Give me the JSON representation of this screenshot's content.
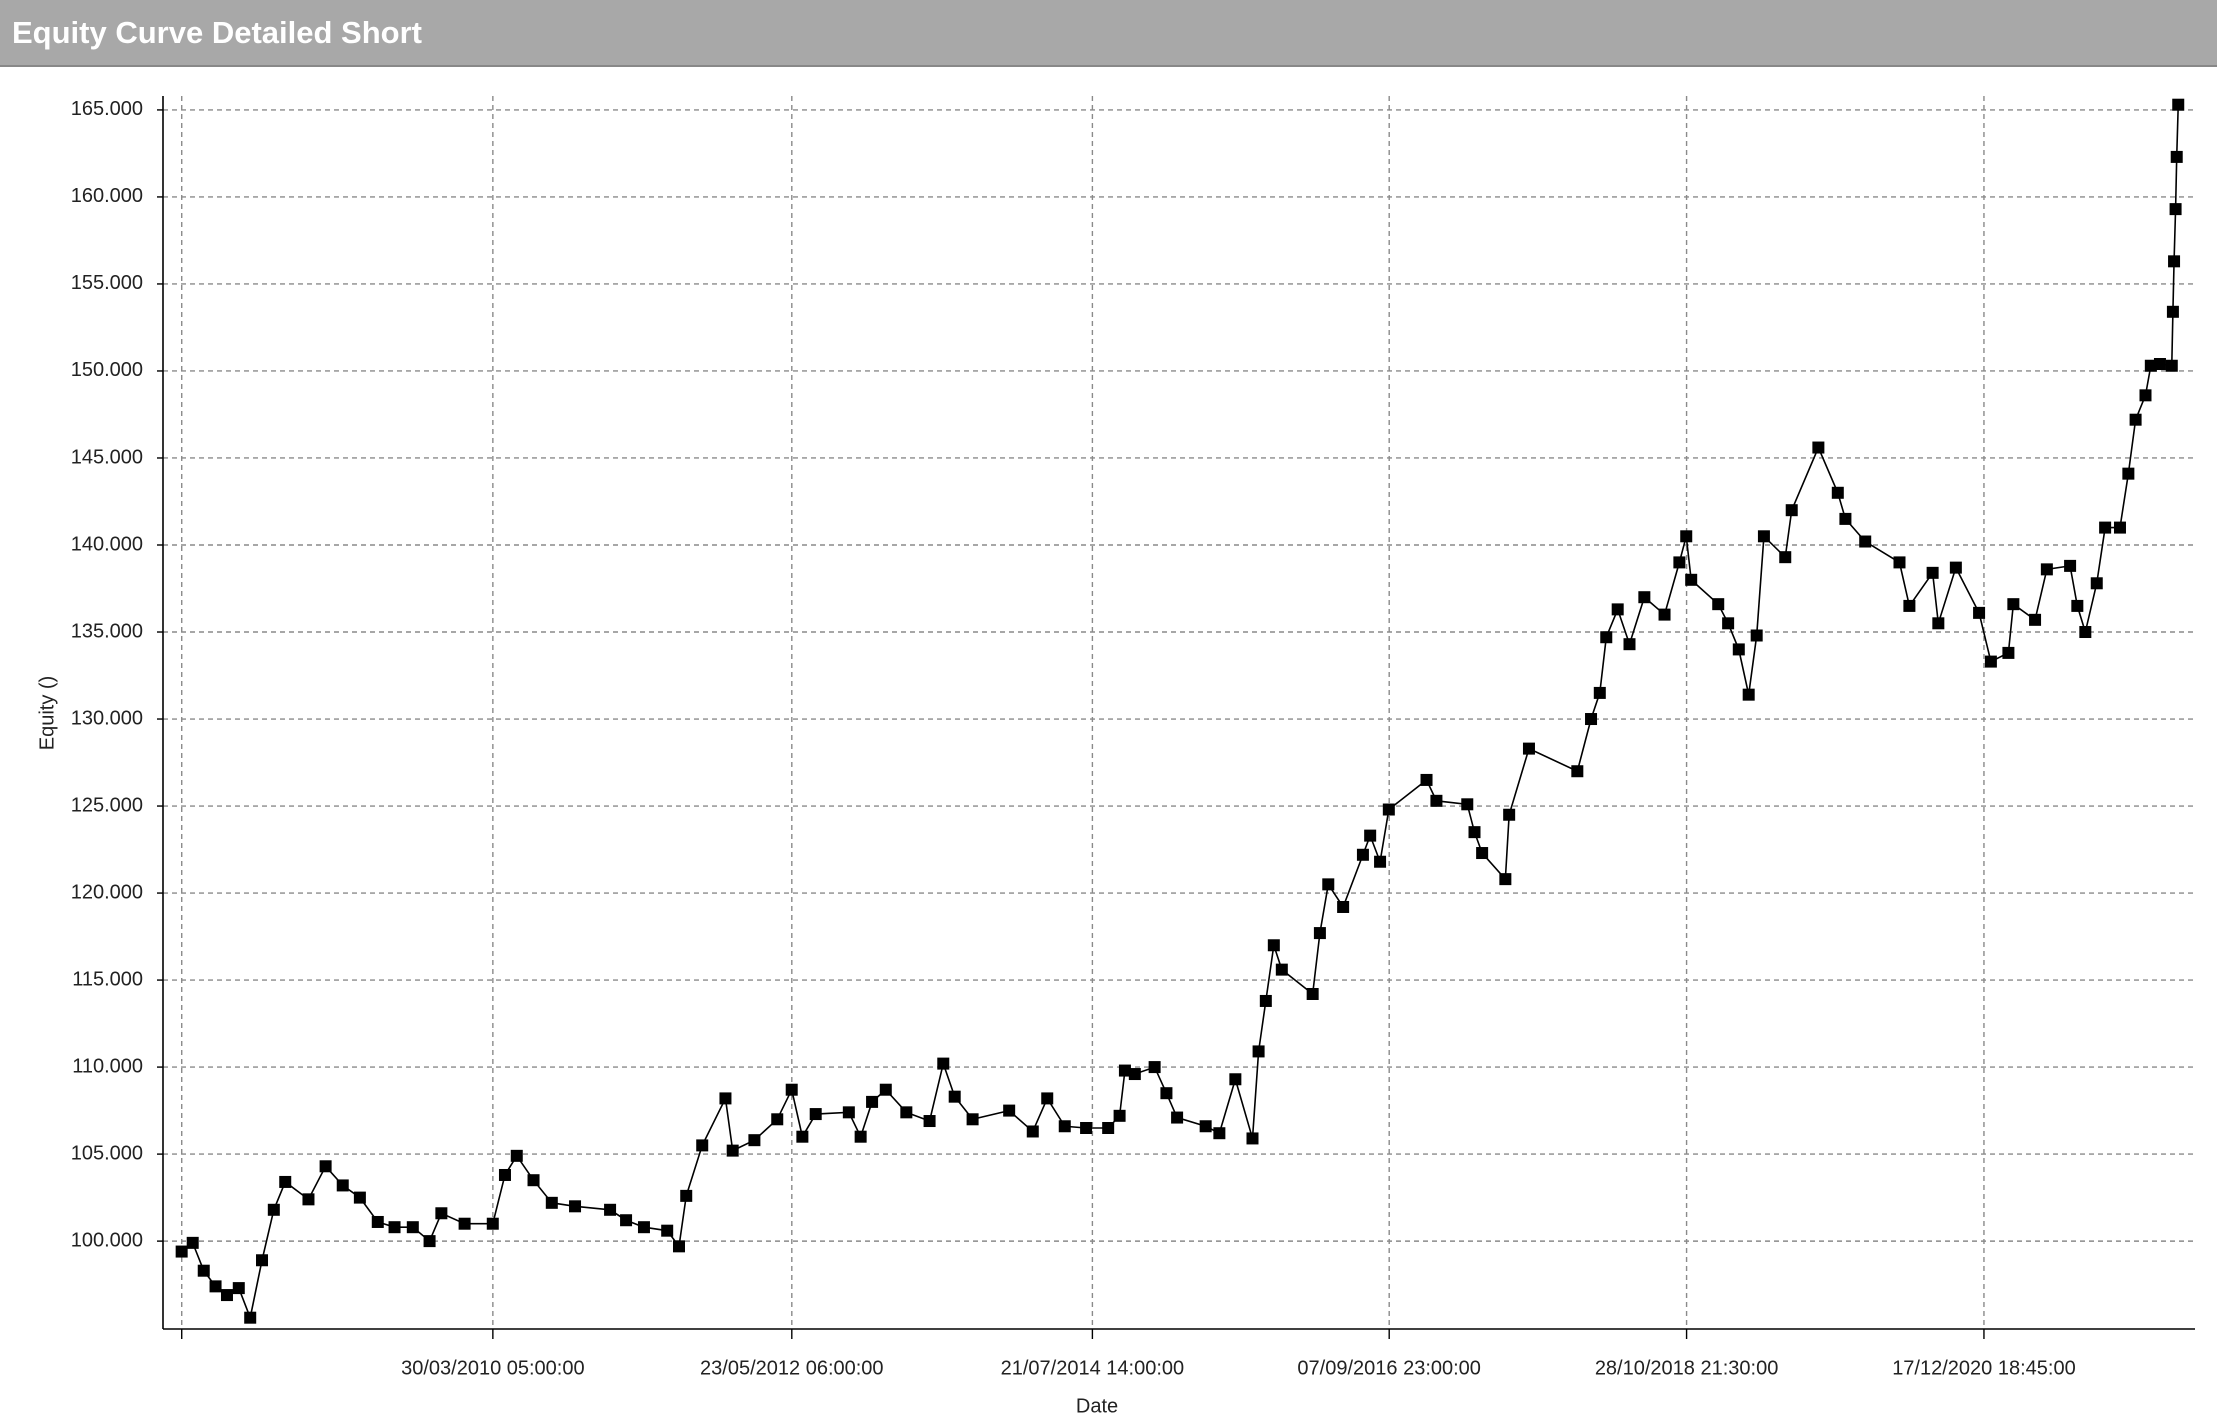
{
  "chart_data": {
    "type": "line",
    "window_title": "Equity Curve Detailed Short",
    "x_label": "Date",
    "y_label": "Equity ()",
    "grid": true,
    "xlim": [
      "2007-11-15",
      "2022-06-25"
    ],
    "xticks": [
      {
        "value": "2008-01-03T04:00:00",
        "label": null
      },
      {
        "value": "2010-03-30T05:00:00",
        "label": "30/03/2010 05:00:00"
      },
      {
        "value": "2012-05-23T06:00:00",
        "label": "23/05/2012 06:00:00"
      },
      {
        "value": "2014-07-21T14:00:00",
        "label": "21/07/2014 14:00:00"
      },
      {
        "value": "2016-09-07T23:00:00",
        "label": "07/09/2016 23:00:00"
      },
      {
        "value": "2018-10-28T21:30:00",
        "label": "28/10/2018 21:30:00"
      },
      {
        "value": "2020-12-17T18:45:00",
        "label": "17/12/2020 18:45:00"
      }
    ],
    "ylim": [
      94950,
      165800
    ],
    "yticks": [
      {
        "value": 100000,
        "label": "100.000"
      },
      {
        "value": 105000,
        "label": "105.000"
      },
      {
        "value": 110000,
        "label": "110.000"
      },
      {
        "value": 115000,
        "label": "115.000"
      },
      {
        "value": 120000,
        "label": "120.000"
      },
      {
        "value": 125000,
        "label": "125.000"
      },
      {
        "value": 130000,
        "label": "130.000"
      },
      {
        "value": 135000,
        "label": "135.000"
      },
      {
        "value": 140000,
        "label": "140.000"
      },
      {
        "value": 145000,
        "label": "145.000"
      },
      {
        "value": 150000,
        "label": "150.000"
      },
      {
        "value": 155000,
        "label": "155.000"
      },
      {
        "value": 160000,
        "label": "160.000"
      },
      {
        "value": 165000,
        "label": "165.000"
      }
    ],
    "x": [
      "2008-01-03",
      "2008-02-01",
      "2008-03-01",
      "2008-04-01",
      "2008-05-01",
      "2008-06-01",
      "2008-07-01",
      "2008-08-01",
      "2008-09-01",
      "2008-10-01",
      "2008-12-01",
      "2009-01-15",
      "2009-03-01",
      "2009-04-15",
      "2009-06-01",
      "2009-07-15",
      "2009-09-01",
      "2009-10-15",
      "2009-11-15",
      "2010-01-15",
      "2010-03-30",
      "2010-05-01",
      "2010-06-01",
      "2010-07-15",
      "2010-09-01",
      "2010-11-01",
      "2011-02-01",
      "2011-03-15",
      "2011-05-01",
      "2011-07-01",
      "2011-08-01",
      "2011-08-20",
      "2011-10-01",
      "2011-12-01",
      "2011-12-20",
      "2012-02-15",
      "2012-04-15",
      "2012-05-23",
      "2012-06-20",
      "2012-07-25",
      "2012-10-20",
      "2012-11-20",
      "2012-12-20",
      "2013-01-25",
      "2013-03-20",
      "2013-05-20",
      "2013-06-25",
      "2013-07-25",
      "2013-09-10",
      "2013-12-15",
      "2014-02-15",
      "2014-03-25",
      "2014-05-10",
      "2014-07-05",
      "2014-09-01",
      "2014-10-01",
      "2014-10-15",
      "2014-11-10",
      "2015-01-01",
      "2015-02-01",
      "2015-03-01",
      "2015-05-15",
      "2015-06-20",
      "2015-08-01",
      "2015-09-15",
      "2015-10-01",
      "2015-10-20",
      "2015-11-10",
      "2015-12-01",
      "2016-02-20",
      "2016-03-10",
      "2016-04-01",
      "2016-05-10",
      "2016-07-01",
      "2016-07-20",
      "2016-08-15",
      "2016-09-07",
      "2016-12-15",
      "2017-01-10",
      "2017-04-01",
      "2017-04-20",
      "2017-05-10",
      "2017-07-10",
      "2017-07-20",
      "2017-09-10",
      "2018-01-15",
      "2018-02-20",
      "2018-03-15",
      "2018-04-01",
      "2018-05-01",
      "2018-06-01",
      "2018-07-10",
      "2018-09-01",
      "2018-10-10",
      "2018-10-28",
      "2018-11-10",
      "2019-01-20",
      "2019-02-15",
      "2019-03-15",
      "2019-04-10",
      "2019-05-01",
      "2019-05-20",
      "2019-07-15",
      "2019-08-01",
      "2019-10-10",
      "2019-11-30",
      "2019-12-20",
      "2020-02-10",
      "2020-05-10",
      "2020-06-05",
      "2020-08-05",
      "2020-08-20",
      "2020-10-05",
      "2020-12-05",
      "2021-01-05",
      "2021-02-20",
      "2021-03-05",
      "2021-05-01",
      "2021-06-01",
      "2021-08-01",
      "2021-08-20",
      "2021-09-10",
      "2021-10-10",
      "2021-11-01",
      "2021-12-10",
      "2022-01-01",
      "2022-01-20",
      "2022-02-15",
      "2022-03-01",
      "2022-03-25",
      "2022-04-25",
      "2022-04-28",
      "2022-05-01",
      "2022-05-05",
      "2022-05-08",
      "2022-05-12"
    ],
    "series": [
      {
        "name": "Equity",
        "color": "#000000",
        "values": [
          99400,
          99900,
          98300,
          97400,
          96900,
          97300,
          95600,
          98900,
          101800,
          103400,
          102400,
          104300,
          103200,
          102500,
          101100,
          100800,
          100800,
          100000,
          101600,
          101000,
          101000,
          103800,
          104900,
          103500,
          102200,
          102000,
          101800,
          101200,
          100800,
          100600,
          99700,
          102600,
          105500,
          108200,
          105200,
          105800,
          107000,
          108700,
          106000,
          107300,
          107400,
          106000,
          108000,
          108700,
          107400,
          106900,
          110200,
          108300,
          107000,
          107500,
          106300,
          108200,
          106600,
          106500,
          106500,
          107200,
          109800,
          109600,
          110000,
          108500,
          107100,
          106600,
          106200,
          109300,
          105900,
          110900,
          113800,
          117000,
          115600,
          114200,
          117700,
          120500,
          119200,
          122200,
          123300,
          121800,
          124800,
          126500,
          125300,
          125100,
          123500,
          122300,
          120800,
          124500,
          128300,
          127000,
          130000,
          131500,
          134700,
          136300,
          134300,
          137000,
          136000,
          139000,
          140500,
          138000,
          136600,
          135500,
          134000,
          131400,
          134800,
          140500,
          139300,
          142000,
          145600,
          143000,
          141500,
          140200,
          139000,
          136500,
          138400,
          135500,
          138700,
          136100,
          133300,
          133800,
          136600,
          135700,
          138600,
          138800,
          136500,
          135000,
          137800,
          141000,
          141000,
          144100,
          147200,
          148600,
          150300,
          150400,
          150300,
          153400,
          156300,
          159300,
          162300,
          165300
        ]
      }
    ]
  }
}
